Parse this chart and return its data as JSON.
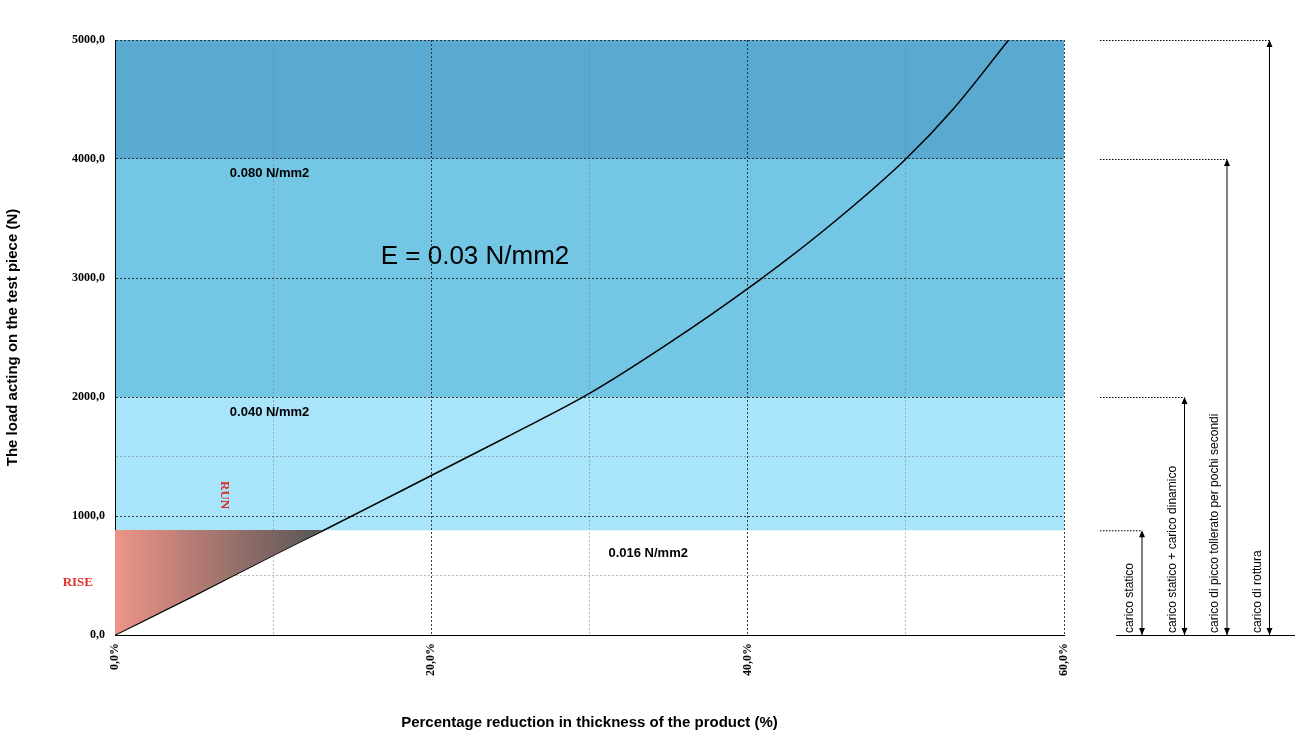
{
  "chart_data": {
    "type": "line",
    "xlabel": "Percentage reduction in thickness of the product (%)",
    "ylabel": "The load acting on the test piece (N)",
    "x": [
      0,
      5,
      10,
      13.2,
      20,
      25,
      30,
      35,
      40,
      45,
      50,
      53,
      56.5
    ],
    "series": [
      {
        "color": "#000000",
        "values": [
          0,
          330,
          670,
          880,
          1340,
          1680,
          2030,
          2450,
          2910,
          3420,
          4000,
          4420,
          5000
        ]
      }
    ],
    "xlim": [
      0,
      60
    ],
    "ylim": [
      0,
      5000
    ],
    "xticks": [
      {
        "value": 0,
        "label": "0,0%"
      },
      {
        "value": 10,
        "label": null
      },
      {
        "value": 20,
        "label": "20,0%"
      },
      {
        "value": 30,
        "label": null
      },
      {
        "value": 40,
        "label": "40,0%"
      },
      {
        "value": 50,
        "label": null
      },
      {
        "value": 60,
        "label": "60,0%"
      }
    ],
    "yticks": [
      {
        "value": 0,
        "label": "0,0"
      },
      {
        "value": 500,
        "label": null
      },
      {
        "value": 1000,
        "label": "1000,0"
      },
      {
        "value": 1500,
        "label": null
      },
      {
        "value": 2000,
        "label": "2000,0"
      },
      {
        "value": 3000,
        "label": "3000,0"
      },
      {
        "value": 4000,
        "label": "4000,0"
      },
      {
        "value": 5000,
        "label": "5000,0"
      }
    ],
    "grid": true,
    "marker": "none",
    "line_style": "solid",
    "legend": false,
    "bands": [
      {
        "axis": "y",
        "from": 880,
        "to": 2000,
        "color": "#a9e5fa"
      },
      {
        "axis": "y",
        "from": 2000,
        "to": 4000,
        "color": "#74c6e5"
      },
      {
        "axis": "y",
        "from": 4000,
        "to": 5000,
        "color": "#5aa9d0"
      }
    ],
    "annotations": [
      "0.080 N/mm2",
      "0.040 N/mm2",
      "0.016 N/mm2",
      "E = 0.03 N/mm2",
      "RISE",
      "RUN",
      "carico statico",
      "carico statico + carico dinamico",
      "carico di picco tollerato per pochi secondi",
      "carico di rottura"
    ]
  }
}
